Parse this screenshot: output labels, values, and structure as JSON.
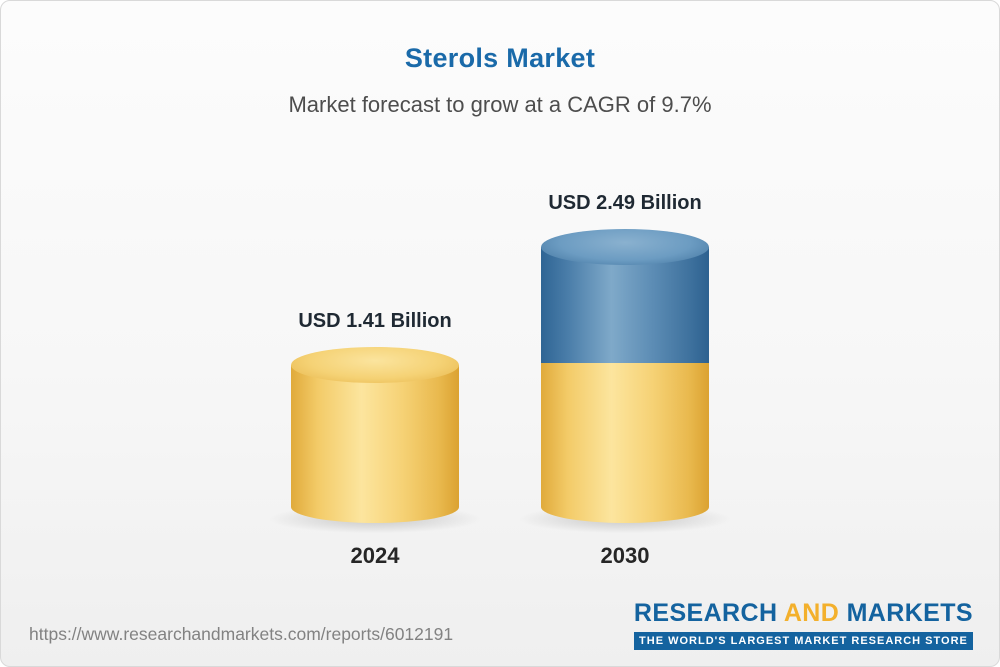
{
  "header": {
    "title": "Sterols Market",
    "subtitle": "Market forecast to grow at a CAGR of 9.7%"
  },
  "chart_data": {
    "type": "bar",
    "title": "Sterols Market",
    "subtitle": "Market forecast to grow at a CAGR of 9.7%",
    "cagr_percent": 9.7,
    "unit": "USD Billion",
    "categories": [
      "2024",
      "2030"
    ],
    "values": [
      1.41,
      2.49
    ],
    "value_labels": [
      "USD 1.41 Billion",
      "USD 2.49 Billion"
    ],
    "legend_position": "none",
    "grid": false,
    "colors": {
      "bar_2024": "#f5d275",
      "bar_2030_top_segment": "#4a7da9",
      "bar_2030_bottom_segment": "#f5d275",
      "title_accent": "#1a6aa9"
    }
  },
  "footer": {
    "url": "https://www.researchandmarkets.com/reports/6012191",
    "logo": {
      "research": "RESEARCH",
      "and": "AND",
      "markets": "MARKETS",
      "tagline": "THE WORLD'S LARGEST MARKET RESEARCH STORE"
    }
  }
}
